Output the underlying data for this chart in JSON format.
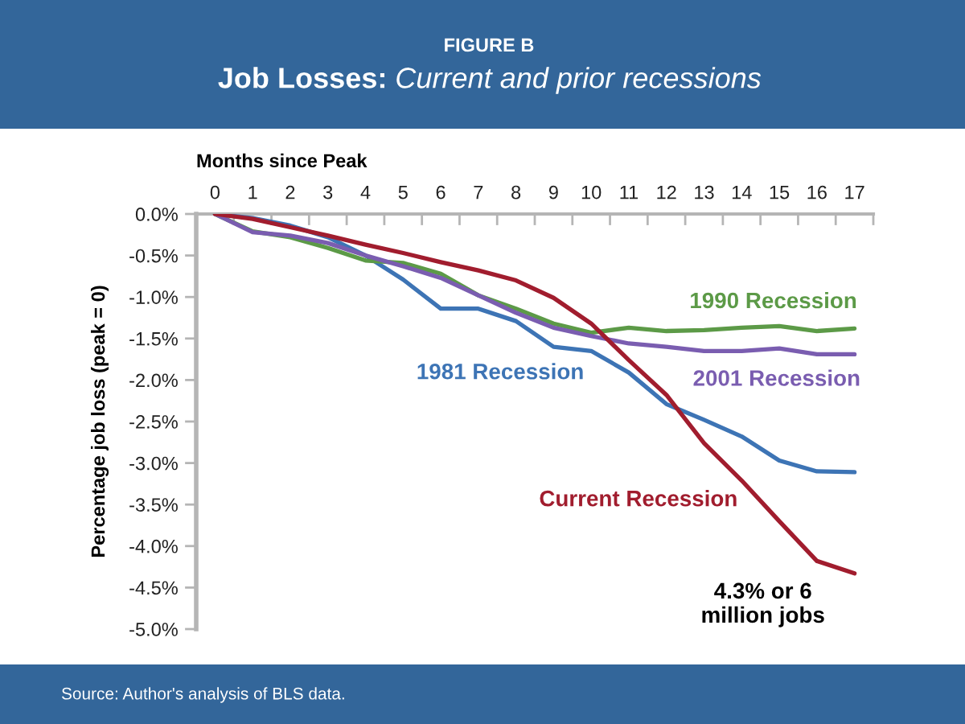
{
  "chart_data": {
    "type": "line",
    "title": "Job Losses: Current and prior recessions",
    "subtitle": "FIGURE B",
    "xlabel": "Months since Peak",
    "ylabel": "Percentage job loss (peak = 0)",
    "categories": [
      "0",
      "1",
      "2",
      "3",
      "4",
      "5",
      "6",
      "7",
      "8",
      "9",
      "10",
      "11",
      "12",
      "13",
      "14",
      "15",
      "16",
      "17"
    ],
    "series": [
      {
        "name": "1981 Recession",
        "color": "#3d74b5",
        "values": [
          0,
          -0.05,
          -0.14,
          -0.28,
          -0.5,
          -0.79,
          -1.14,
          -1.14,
          -1.29,
          -1.6,
          -1.65,
          -1.91,
          -2.29,
          -2.48,
          -2.68,
          -2.97,
          -3.1,
          -3.11
        ]
      },
      {
        "name": "1990 Recession",
        "color": "#5c9a47",
        "values": [
          0,
          -0.21,
          -0.28,
          -0.41,
          -0.56,
          -0.59,
          -0.72,
          -0.98,
          -1.14,
          -1.32,
          -1.43,
          -1.37,
          -1.41,
          -1.4,
          -1.37,
          -1.35,
          -1.41,
          -1.38
        ]
      },
      {
        "name": "2001 Recession",
        "color": "#7a5db0",
        "values": [
          0,
          -0.22,
          -0.26,
          -0.35,
          -0.5,
          -0.63,
          -0.77,
          -0.98,
          -1.19,
          -1.37,
          -1.47,
          -1.56,
          -1.6,
          -1.65,
          -1.65,
          -1.62,
          -1.69,
          -1.69
        ]
      },
      {
        "name": "Current Recession",
        "color": "#a11d2e",
        "values": [
          0,
          -0.06,
          -0.16,
          -0.26,
          -0.37,
          -0.47,
          -0.58,
          -0.68,
          -0.8,
          -1.01,
          -1.32,
          -1.76,
          -2.18,
          -2.76,
          -3.21,
          -3.7,
          -4.18,
          -4.33
        ]
      }
    ],
    "ylim": [
      -5,
      0
    ],
    "yticks": [
      {
        "value": 0,
        "label": "0.0%"
      },
      {
        "value": -0.5,
        "label": "-0.5%"
      },
      {
        "value": -1,
        "label": "-1.0%"
      },
      {
        "value": -1.5,
        "label": "-1.5%"
      },
      {
        "value": -2,
        "label": "-2.0%"
      },
      {
        "value": -2.5,
        "label": "-2.5%"
      },
      {
        "value": -3,
        "label": "-3.0%"
      },
      {
        "value": -3.5,
        "label": "-3.5%"
      },
      {
        "value": -4,
        "label": "-4.0%"
      },
      {
        "value": -4.5,
        "label": "-4.5%"
      },
      {
        "value": -5,
        "label": "-5.0%"
      }
    ],
    "annotations": [
      {
        "text": "4.3% or 6\nmillion jobs",
        "x": "17",
        "y": -4.33
      },
      "Source: Author's analysis of BLS data."
    ]
  }
}
